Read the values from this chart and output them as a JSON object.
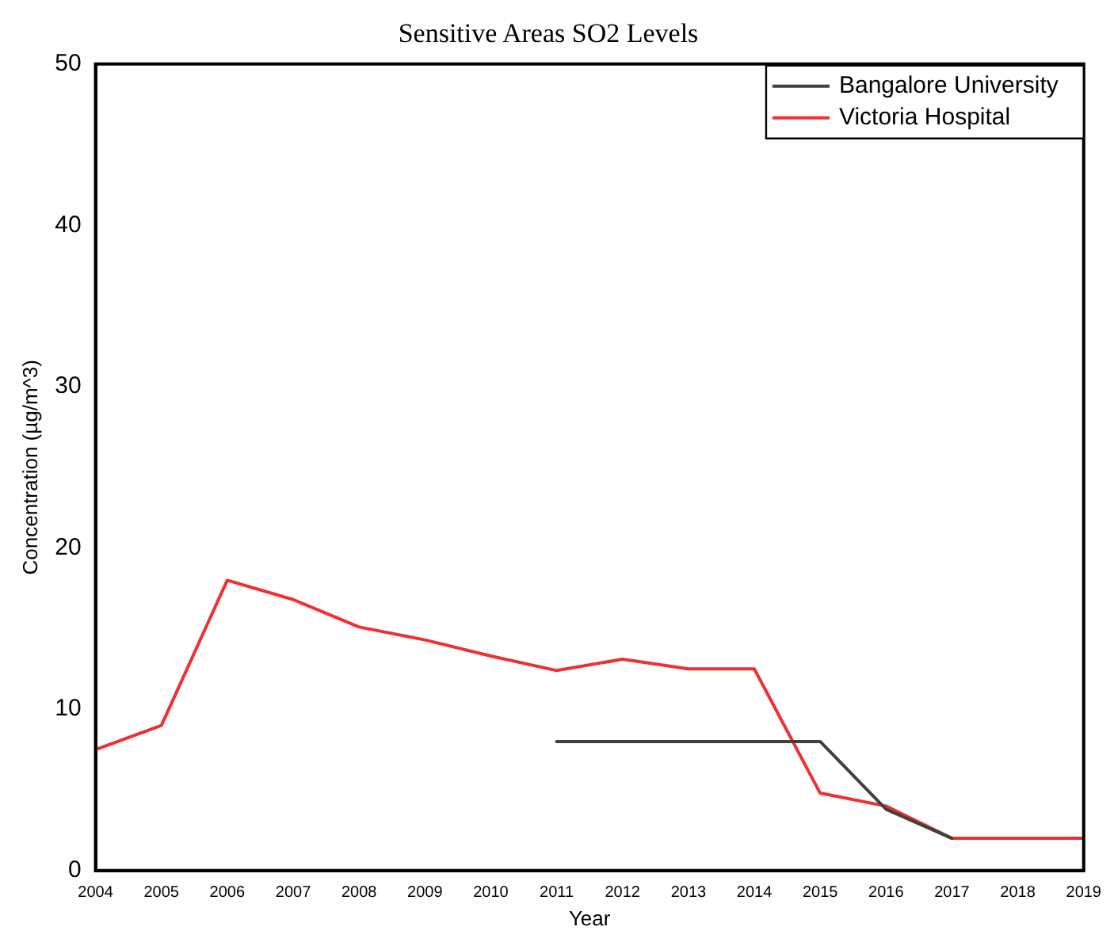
{
  "chart_data": {
    "type": "line",
    "title": "Sensitive Areas SO2 Levels",
    "xlabel": "Year",
    "ylabel": "Concentration (µg/m^3)",
    "x": [
      2004,
      2005,
      2006,
      2007,
      2008,
      2009,
      2010,
      2011,
      2012,
      2013,
      2014,
      2015,
      2016,
      2017,
      2018,
      2019
    ],
    "series": [
      {
        "name": "Bangalore University",
        "color": "#404040",
        "values": [
          null,
          null,
          null,
          null,
          null,
          null,
          null,
          8,
          8,
          8,
          8,
          8,
          3.8,
          2,
          null,
          null
        ]
      },
      {
        "name": "Victoria Hospital",
        "color": "#f03030",
        "values": [
          7.5,
          9,
          18,
          16.8,
          15.1,
          14.3,
          13.3,
          12.4,
          13.1,
          12.5,
          12.5,
          4.8,
          4,
          2,
          2,
          2
        ]
      }
    ],
    "xlim": [
      2004,
      2019
    ],
    "xticks": [
      2004,
      2005,
      2006,
      2007,
      2008,
      2009,
      2010,
      2011,
      2012,
      2013,
      2014,
      2015,
      2016,
      2017,
      2018,
      2019
    ],
    "ylim": [
      0,
      50
    ],
    "yticks": [
      0,
      10,
      20,
      30,
      40,
      50
    ],
    "grid": false,
    "legend": "top right",
    "marker": "none",
    "line_style": "solid"
  }
}
